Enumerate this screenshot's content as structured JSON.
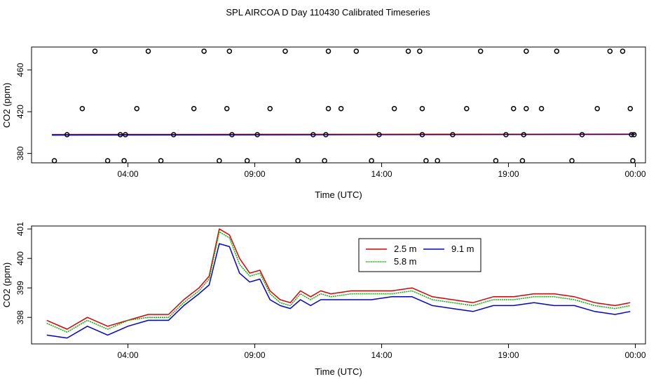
{
  "title": "SPL AIRCOA D  Day 110430  Calibrated Timeseries",
  "colors": {
    "series_2_5m": "#e00000",
    "series_5_8m": "#00b000",
    "series_9_1m": "#0000dd",
    "axis": "#000000"
  },
  "chart_data": [
    {
      "type": "scatter",
      "title": "",
      "xlabel": "Time (UTC)",
      "ylabel": "CO2 (ppm)",
      "xlim": [
        0.2,
        24.4
      ],
      "ylim": [
        371,
        482
      ],
      "xticks": [
        4,
        9,
        14,
        19,
        24
      ],
      "xtick_labels": [
        "04:00",
        "09:00",
        "14:00",
        "19:00",
        "00:00"
      ],
      "yticks": [
        380,
        420,
        460
      ],
      "ytick_labels": [
        "380",
        "420",
        "460"
      ],
      "points": {
        "x": [
          1.1,
          1.6,
          2.2,
          2.7,
          3.2,
          3.7,
          3.85,
          3.9,
          4.35,
          4.8,
          5.3,
          5.8,
          6.6,
          7.0,
          7.6,
          7.9,
          8.0,
          8.1,
          8.7,
          9.1,
          9.6,
          10.2,
          10.7,
          11.3,
          11.75,
          11.8,
          11.9,
          11.9,
          12.4,
          13.0,
          13.6,
          13.9,
          14.5,
          15.05,
          15.5,
          15.6,
          15.6,
          15.75,
          16.2,
          16.8,
          17.35,
          17.9,
          18.5,
          18.9,
          19.2,
          19.55,
          19.6,
          19.7,
          19.7,
          20.3,
          20.9,
          21.5,
          21.9,
          22.5,
          23.0,
          23.5,
          23.8,
          23.85,
          23.9,
          23.95
        ],
        "y": [
          373,
          398,
          423,
          478,
          373,
          398,
          373,
          398,
          423,
          478,
          373,
          398,
          423,
          478,
          373,
          423,
          478,
          398,
          373,
          398,
          423,
          478,
          373,
          398,
          373,
          398,
          423,
          478,
          423,
          478,
          373,
          398,
          423,
          478,
          478,
          398,
          423,
          373,
          373,
          398,
          423,
          478,
          373,
          398,
          423,
          373,
          398,
          423,
          478,
          423,
          478,
          373,
          398,
          423,
          478,
          478,
          423,
          398,
          373,
          398
        ]
      },
      "series": [
        {
          "name": "2.5 m",
          "x": [
            1.0,
            24.0
          ],
          "values": [
            398.2,
            398.5
          ]
        },
        {
          "name": "9.1 m",
          "x": [
            1.0,
            24.0
          ],
          "values": [
            397.6,
            398.3
          ]
        }
      ]
    },
    {
      "type": "line",
      "title": "",
      "xlabel": "Time (UTC)",
      "ylabel": "CO2 (ppm)",
      "xlim": [
        0.2,
        24.4
      ],
      "ylim": [
        397.1,
        401.1
      ],
      "xticks": [
        4,
        9,
        14,
        19,
        24
      ],
      "xtick_labels": [
        "04:00",
        "09:00",
        "14:00",
        "19:00",
        "00:00"
      ],
      "yticks": [
        398,
        399,
        400,
        401
      ],
      "ytick_labels": [
        "398",
        "399",
        "400",
        "401"
      ],
      "legend": {
        "placement": "top-center",
        "entries": [
          "2.5 m",
          "5.8 m",
          "9.1 m"
        ]
      },
      "x": [
        0.8,
        1.6,
        2.4,
        3.2,
        4.0,
        4.8,
        5.6,
        6.2,
        6.8,
        7.2,
        7.6,
        8.0,
        8.4,
        8.8,
        9.2,
        9.6,
        10.0,
        10.4,
        10.8,
        11.2,
        11.6,
        12.0,
        12.8,
        13.6,
        14.4,
        15.2,
        16.0,
        16.8,
        17.6,
        18.4,
        19.2,
        20.0,
        20.8,
        21.6,
        22.4,
        23.2,
        23.8
      ],
      "series": [
        {
          "name": "2.5 m",
          "values": [
            397.9,
            397.6,
            398.0,
            397.7,
            397.9,
            398.1,
            398.1,
            398.6,
            399.0,
            399.4,
            401.0,
            400.8,
            400.0,
            399.5,
            399.6,
            398.9,
            398.6,
            398.5,
            398.9,
            398.7,
            398.9,
            398.8,
            398.9,
            398.9,
            398.9,
            399.0,
            398.7,
            398.6,
            398.5,
            398.7,
            398.7,
            398.8,
            398.8,
            398.7,
            398.5,
            398.4,
            398.5
          ]
        },
        {
          "name": "5.8 m",
          "values": [
            397.8,
            397.5,
            397.9,
            397.6,
            397.9,
            398.0,
            398.0,
            398.5,
            398.9,
            399.3,
            400.9,
            400.7,
            399.8,
            399.4,
            399.5,
            398.8,
            398.5,
            398.4,
            398.8,
            398.6,
            398.8,
            398.7,
            398.8,
            398.8,
            398.8,
            398.9,
            398.6,
            398.5,
            398.4,
            398.6,
            398.6,
            398.7,
            398.7,
            398.6,
            398.4,
            398.3,
            398.4
          ]
        },
        {
          "name": "9.1 m",
          "values": [
            397.4,
            397.3,
            397.7,
            397.4,
            397.7,
            397.9,
            397.9,
            398.4,
            398.8,
            399.1,
            400.5,
            400.4,
            399.5,
            399.2,
            399.3,
            398.6,
            398.4,
            398.3,
            398.6,
            398.4,
            398.6,
            398.6,
            398.6,
            398.6,
            398.7,
            398.7,
            398.4,
            398.3,
            398.2,
            398.4,
            398.4,
            398.5,
            398.4,
            398.4,
            398.2,
            398.1,
            398.2
          ]
        }
      ]
    }
  ]
}
